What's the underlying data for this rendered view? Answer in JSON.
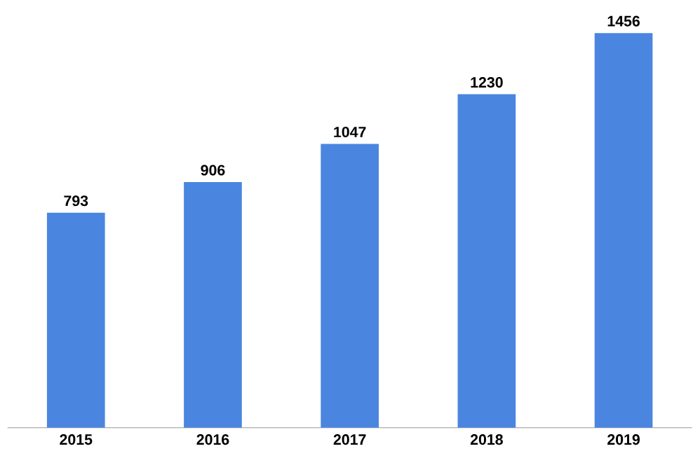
{
  "chart_data": {
    "type": "bar",
    "categories": [
      "2015",
      "2016",
      "2017",
      "2018",
      "2019"
    ],
    "values": [
      793,
      906,
      1047,
      1230,
      1456
    ],
    "color": "#4a86e0",
    "data_labels": true
  }
}
